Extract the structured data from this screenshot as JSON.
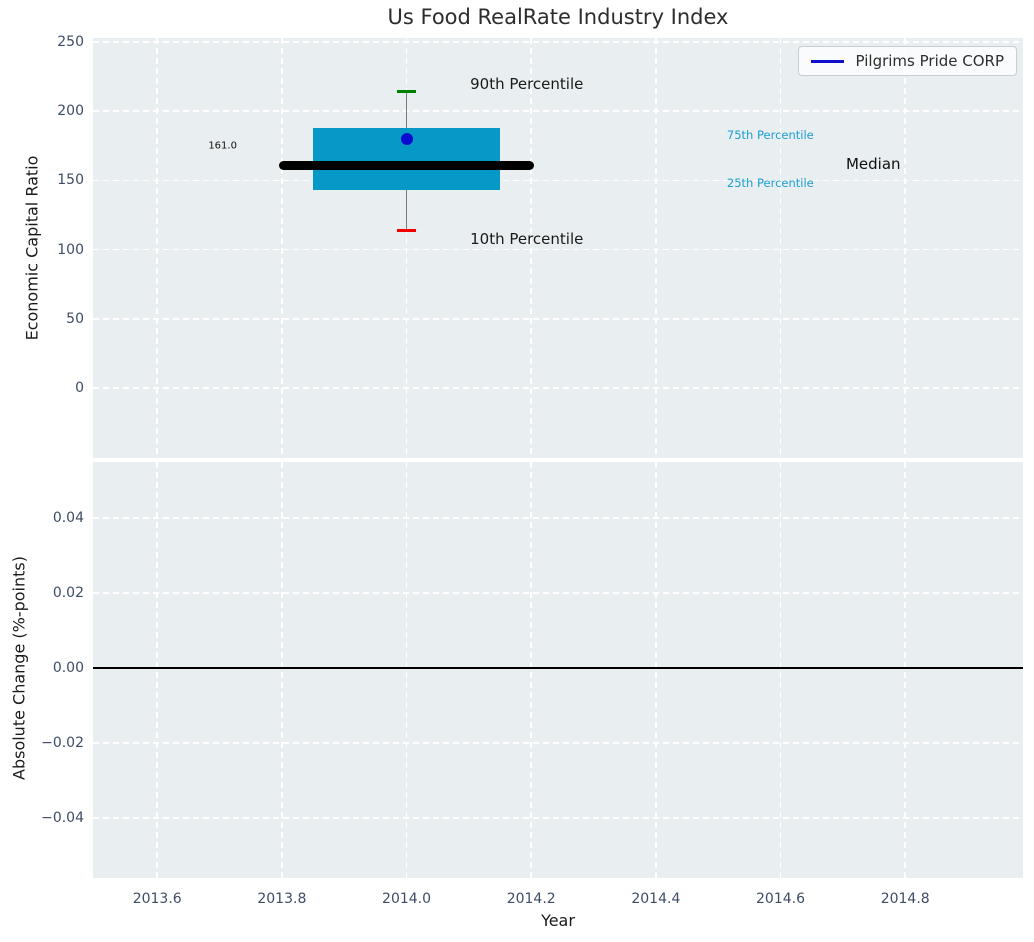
{
  "figure": {
    "title": "Us Food RealRate Industry Index",
    "top_ylabel": "Economic Capital Ratio",
    "bottom_ylabel": "Absolute Change (%-points)",
    "xlabel": "Year",
    "legend": {
      "label": "Pilgrims Pride CORP",
      "line_color": "#1010cc"
    }
  },
  "colors": {
    "plot_bg": "#e9eef0",
    "grid": "#ffffff",
    "box_fill": "#0699c7",
    "median_line": "#000000",
    "whisker": "#7a7a7a",
    "cap_90th": "#008000",
    "cap_10th": "#f20000",
    "company_dot": "#0b0bd0",
    "tick_text": "#3e4d66",
    "zero_line": "#000000",
    "percentile_label": "#1b9ed2"
  },
  "chart_data": [
    {
      "type": "boxplot",
      "title": "Us Food RealRate Industry Index",
      "ylabel": "Economic Capital Ratio",
      "xlabel": "Year",
      "xlim": [
        2013.497,
        2014.989
      ],
      "ylim": [
        -50.6,
        252.9
      ],
      "grid": true,
      "legend_position": "upper right",
      "xticks": [
        {
          "value": 2013.6,
          "label": "2013.6"
        },
        {
          "value": 2013.8,
          "label": "2013.8"
        },
        {
          "value": 2014.0,
          "label": "2014.0"
        },
        {
          "value": 2014.2,
          "label": "2014.2"
        },
        {
          "value": 2014.4,
          "label": "2014.4"
        },
        {
          "value": 2014.6,
          "label": "2014.6"
        },
        {
          "value": 2014.8,
          "label": "2014.8"
        }
      ],
      "yticks": [
        {
          "value": 250,
          "label": "250"
        },
        {
          "value": 200,
          "label": "200"
        },
        {
          "value": 150,
          "label": "150"
        },
        {
          "value": 100,
          "label": "100"
        },
        {
          "value": 50,
          "label": "50"
        },
        {
          "value": 0,
          "label": "0"
        }
      ],
      "series": {
        "year": 2014.0,
        "p10": 114,
        "p25": 143,
        "median": 161,
        "p75": 188,
        "p90": 214,
        "median_label": "161.0",
        "box_halfwidth": 0.15,
        "median_halfwidth": 0.205,
        "cap_halfwidth": 0.016,
        "company": {
          "name": "Pilgrims Pride CORP",
          "year": 2014.0,
          "value": 180
        }
      },
      "annotations": [
        {
          "text": "90th Percentile",
          "x": 2014.102,
          "y": 220,
          "color": "#1a1a1a",
          "size": 15
        },
        {
          "text": "10th Percentile",
          "x": 2014.102,
          "y": 108,
          "color": "#1a1a1a",
          "size": 15
        },
        {
          "text": "75th Percentile",
          "x": 2014.514,
          "y": 183,
          "color": "#1b9ed2",
          "size": 11.5
        },
        {
          "text": "25th Percentile",
          "x": 2014.514,
          "y": 148,
          "color": "#1b9ed2",
          "size": 11.5
        },
        {
          "text": "Median",
          "x": 2014.705,
          "y": 162,
          "color": "#111111",
          "size": 15
        },
        {
          "text": "161.0",
          "x": 2013.682,
          "y": 175,
          "color": "#111111",
          "size": 10
        }
      ]
    },
    {
      "type": "line",
      "title": "",
      "ylabel": "Absolute Change (%-points)",
      "xlabel": "Year",
      "xlim": [
        2013.497,
        2014.989
      ],
      "ylim": [
        -0.056,
        0.0549
      ],
      "grid": true,
      "zero_line": 0.0,
      "xticks": [
        {
          "value": 2013.6,
          "label": "2013.6"
        },
        {
          "value": 2013.8,
          "label": "2013.8"
        },
        {
          "value": 2014.0,
          "label": "2014.0"
        },
        {
          "value": 2014.2,
          "label": "2014.2"
        },
        {
          "value": 2014.4,
          "label": "2014.4"
        },
        {
          "value": 2014.6,
          "label": "2014.6"
        },
        {
          "value": 2014.8,
          "label": "2014.8"
        }
      ],
      "yticks": [
        {
          "value": 0.04,
          "label": "0.04"
        },
        {
          "value": 0.02,
          "label": "0.02"
        },
        {
          "value": 0.0,
          "label": "0.00"
        },
        {
          "value": -0.02,
          "label": "−0.02"
        },
        {
          "value": -0.04,
          "label": "−0.04"
        }
      ],
      "series": []
    }
  ]
}
